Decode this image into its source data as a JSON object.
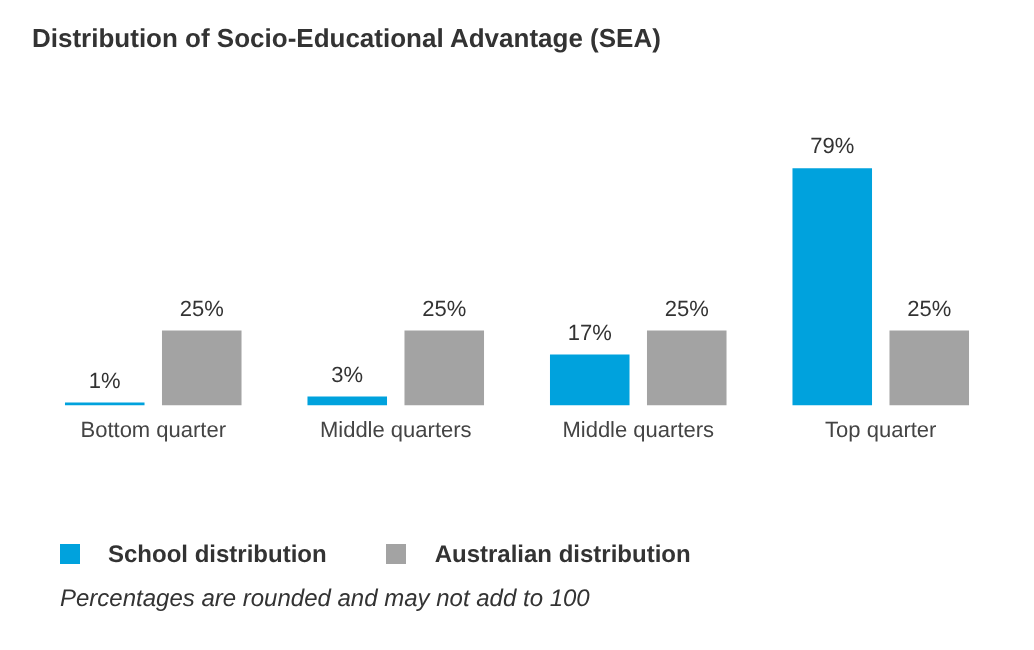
{
  "chart_data": {
    "type": "bar",
    "title": "Distribution of Socio-Educational Advantage (SEA)",
    "categories": [
      "Bottom quarter",
      "Middle quarters",
      "Middle quarters",
      "Top quarter"
    ],
    "series": [
      {
        "name": "School distribution",
        "color": "#00a2dd",
        "values": [
          1,
          3,
          17,
          79
        ],
        "value_labels": [
          "1%",
          "3%",
          "17%",
          "79%"
        ]
      },
      {
        "name": "Australian distribution",
        "color": "#a3a3a3",
        "values": [
          25,
          25,
          25,
          25
        ],
        "value_labels": [
          "25%",
          "25%",
          "25%",
          "25%"
        ]
      }
    ],
    "legend": "bottom left",
    "grid": false,
    "annotations": [
      "Percentages are rounded and may not add to 100"
    ]
  }
}
